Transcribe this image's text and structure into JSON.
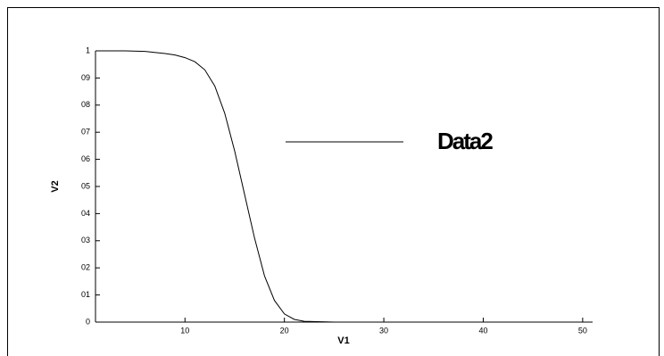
{
  "chart_data": {
    "type": "line",
    "x_label": "V1",
    "y_label": "V2",
    "x": [
      1,
      4,
      6,
      8,
      9,
      10,
      11,
      12,
      13,
      14,
      15,
      16,
      17,
      18,
      19,
      20,
      21,
      22,
      25,
      30,
      40,
      51
    ],
    "series": [
      {
        "name": "Data2",
        "color": "#000000",
        "values": [
          1,
          1,
          0.998,
          0.99,
          0.985,
          0.975,
          0.96,
          0.93,
          0.87,
          0.77,
          0.63,
          0.47,
          0.31,
          0.17,
          0.08,
          0.03,
          0.01,
          0.003,
          0,
          0,
          0,
          0
        ]
      }
    ],
    "xlim": [
      1,
      51
    ],
    "ylim": [
      0,
      1
    ],
    "xticks": [
      10,
      20,
      30,
      40,
      50
    ],
    "yticks": [
      0,
      {
        "value": 0.1,
        "label": "01"
      },
      {
        "value": 0.2,
        "label": "02"
      },
      {
        "value": 0.3,
        "label": "03"
      },
      {
        "value": 0.4,
        "label": "04"
      },
      {
        "value": 0.5,
        "label": "05"
      },
      {
        "value": 0.6,
        "label": "06"
      },
      {
        "value": 0.7,
        "label": "07"
      },
      {
        "value": 0.8,
        "label": "08"
      },
      {
        "value": 0.9,
        "label": "09"
      },
      1
    ]
  }
}
